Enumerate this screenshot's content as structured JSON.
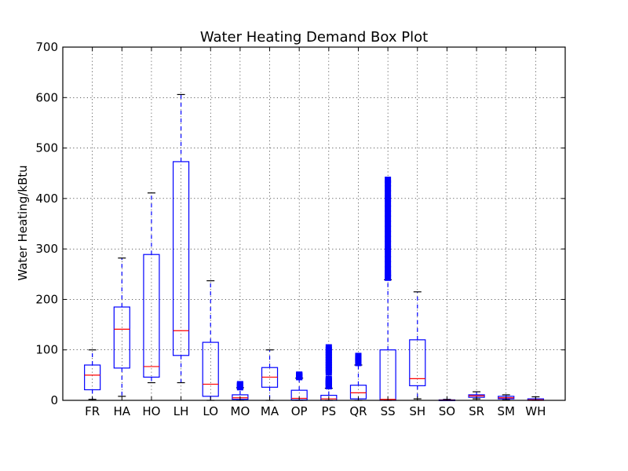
{
  "chart_data": {
    "type": "box",
    "title": "Water Heating Demand Box Plot",
    "xlabel": "",
    "ylabel": "Water Heating/kBtu",
    "ylim": [
      0,
      700
    ],
    "yticks": [
      0,
      100,
      200,
      300,
      400,
      500,
      600,
      700
    ],
    "grid": true,
    "colors": {
      "box": "#0000ff",
      "median": "#ff0000",
      "cap": "#000000",
      "flier": "#0000ff"
    },
    "categories": [
      "FR",
      "HA",
      "HO",
      "LH",
      "LO",
      "MO",
      "MA",
      "OP",
      "PS",
      "QR",
      "SS",
      "SH",
      "SO",
      "SR",
      "SM",
      "WH"
    ],
    "boxes": [
      {
        "label": "FR",
        "whisker_low": 2,
        "q1": 21,
        "median": 50,
        "q3": 70,
        "whisker_high": 100,
        "fliers": []
      },
      {
        "label": "HA",
        "whisker_low": 8,
        "q1": 64,
        "median": 141,
        "q3": 185,
        "whisker_high": 282,
        "fliers": []
      },
      {
        "label": "HO",
        "whisker_low": 35,
        "q1": 46,
        "median": 67,
        "q3": 289,
        "whisker_high": 411,
        "fliers": []
      },
      {
        "label": "LH",
        "whisker_low": 35,
        "q1": 89,
        "median": 138,
        "q3": 473,
        "whisker_high": 606,
        "fliers": []
      },
      {
        "label": "LO",
        "whisker_low": 0,
        "q1": 8,
        "median": 32,
        "q3": 115,
        "whisker_high": 237,
        "fliers": []
      },
      {
        "label": "MO",
        "whisker_low": 0,
        "q1": 2,
        "median": 5,
        "q3": 11,
        "whisker_high": 25,
        "fliers": [
          26,
          27,
          28,
          29,
          30,
          31,
          32
        ]
      },
      {
        "label": "MA",
        "whisker_low": 0,
        "q1": 26,
        "median": 46,
        "q3": 65,
        "whisker_high": 100,
        "fliers": []
      },
      {
        "label": "OP",
        "whisker_low": 0,
        "q1": 1,
        "median": 4,
        "q3": 20,
        "whisker_high": 44,
        "fliers": [
          46,
          47,
          48,
          49,
          50,
          51
        ]
      },
      {
        "label": "PS",
        "whisker_low": 0,
        "q1": 0,
        "median": 3,
        "q3": 10,
        "whisker_high": 24,
        "fliers": [
          28,
          30,
          32,
          34,
          36,
          38,
          40,
          42,
          55,
          60,
          65,
          70,
          75,
          80,
          85,
          90,
          95,
          100,
          105
        ]
      },
      {
        "label": "QR",
        "whisker_low": 0,
        "q1": 3,
        "median": 15,
        "q3": 30,
        "whisker_high": 70,
        "fliers": [
          74,
          76,
          78,
          80,
          82,
          84,
          86,
          88
        ]
      },
      {
        "label": "SS",
        "whisker_low": 0,
        "q1": 0,
        "median": 2,
        "q3": 100,
        "whisker_high": 239,
        "fliers": [
          243,
          248,
          252,
          260,
          270,
          280,
          290,
          300,
          310,
          320,
          330,
          340,
          350,
          360,
          370,
          380,
          390,
          400,
          410,
          420,
          430,
          437
        ]
      },
      {
        "label": "SH",
        "whisker_low": 3,
        "q1": 29,
        "median": 43,
        "q3": 120,
        "whisker_high": 215,
        "fliers": []
      },
      {
        "label": "SO",
        "whisker_low": 0,
        "q1": 0,
        "median": 0.5,
        "q3": 1,
        "whisker_high": 2,
        "fliers": []
      },
      {
        "label": "SR",
        "whisker_low": 3,
        "q1": 6,
        "median": 9,
        "q3": 11,
        "whisker_high": 17,
        "fliers": []
      },
      {
        "label": "SM",
        "whisker_low": 1,
        "q1": 3,
        "median": 5,
        "q3": 8,
        "whisker_high": 11,
        "fliers": []
      },
      {
        "label": "WH",
        "whisker_low": 0,
        "q1": 0,
        "median": 1,
        "q3": 3,
        "whisker_high": 7,
        "fliers": []
      }
    ]
  }
}
